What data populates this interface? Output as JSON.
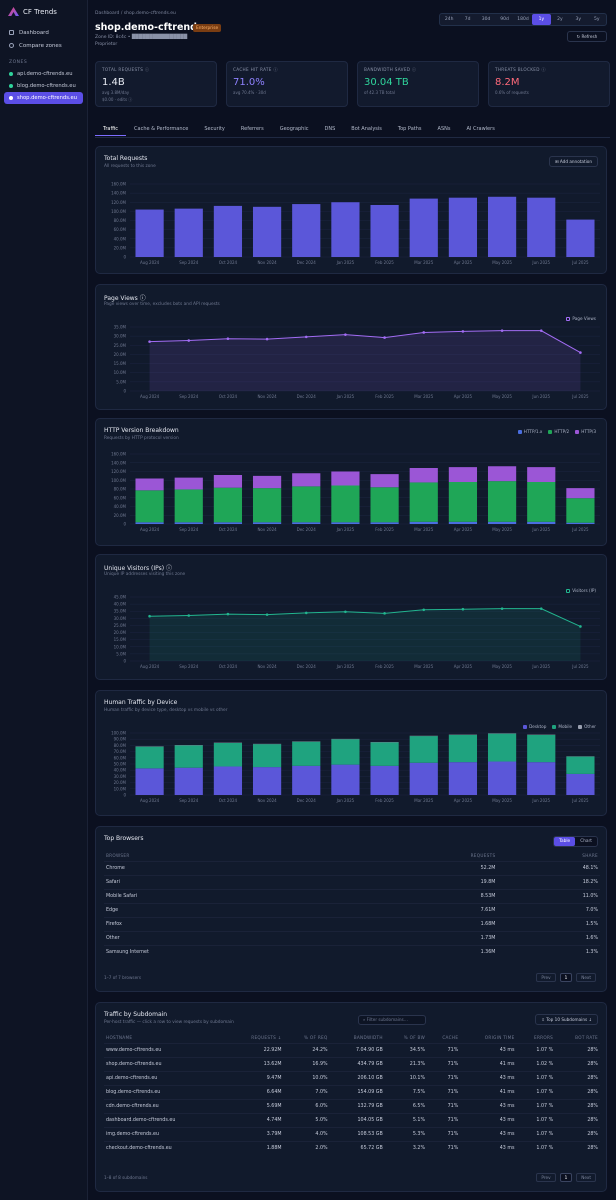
{
  "app": {
    "name": "CF Trends"
  },
  "sidebar": {
    "nav": [
      {
        "label": "Dashboard",
        "icon": "grid-icon"
      },
      {
        "label": "Compare zones",
        "icon": "compare-icon"
      }
    ],
    "section_label": "ZONES",
    "zones": [
      {
        "label": "api.demo-cftrends.eu",
        "active": false
      },
      {
        "label": "blog.demo-cftrends.eu",
        "active": false
      },
      {
        "label": "shop.demo-cftrends.eu",
        "active": true
      }
    ]
  },
  "header": {
    "breadcrumb": "Dashboard  /  shop.demo-cftrends.eu",
    "title": "shop.demo-cftrends.eu",
    "badge": "Enterprise",
    "meta1": "Zone ID: 8c4c • ████████████████",
    "meta2": "Proprietor",
    "ranges": [
      "24h",
      "7d",
      "30d",
      "90d",
      "180d",
      "1y",
      "2y",
      "3y",
      "5y"
    ],
    "selected_range": "1y",
    "refresh_label": "↻ Refresh"
  },
  "kpis": [
    {
      "label": "TOTAL REQUESTS ⓘ",
      "value": "1.4B",
      "sub": "avg 3.8M/day",
      "sub2": "$0.00 · edits ⓘ",
      "color": "#e6e9f2"
    },
    {
      "label": "CACHE HIT RATE ⓘ",
      "value": "71.0%",
      "sub": "avg 70.4% · 30d",
      "sub2": "",
      "color": "#8f82ff"
    },
    {
      "label": "BANDWIDTH SAVED ⓘ",
      "value": "30.04 TB",
      "sub": "of 42.3 TB total",
      "sub2": "",
      "color": "#2fd39b"
    },
    {
      "label": "THREATS BLOCKED ⓘ",
      "value": "8.2M",
      "sub": "0.6% of requests",
      "sub2": "",
      "color": "#ff6a7a"
    }
  ],
  "tabs": [
    "Traffic",
    "Cache & Performance",
    "Security",
    "Referrers",
    "Geographic",
    "DNS",
    "Bot Analysis",
    "Top Paths",
    "ASNs",
    "AI Crawlers"
  ],
  "selected_tab": "Traffic",
  "charts": {
    "total_requests": {
      "title": "Total Requests",
      "subtitle": "All requests to this zone",
      "button": "⊞ Add annotation"
    },
    "page_views": {
      "title": "Page Views ⓘ",
      "subtitle": "Page views over time, excludes bots and API requests",
      "legend": "Page Views"
    },
    "http_versions": {
      "title": "HTTP Version Breakdown",
      "subtitle": "Requests by HTTP protocol version",
      "legend": [
        "HTTP/1.x",
        "HTTP/2",
        "HTTP/3"
      ]
    },
    "unique_visitors": {
      "title": "Unique Visitors (IPs) ⓘ",
      "subtitle": "Unique IP addresses visiting this zone",
      "legend": "Visitors (IP)"
    },
    "human_traffic": {
      "title": "Human Traffic by Device",
      "subtitle": "Human traffic by device type, desktop vs mobile vs other",
      "legend": [
        "Desktop",
        "Mobile",
        "Other"
      ]
    }
  },
  "chart_data": [
    {
      "type": "bar",
      "title": "Total Requests",
      "categories": [
        "Aug 2024",
        "Sep 2024",
        "Oct 2024",
        "Nov 2024",
        "Dec 2024",
        "Jan 2025",
        "Feb 2025",
        "Mar 2025",
        "Apr 2025",
        "May 2025",
        "Jun 2025",
        "Jul 2025"
      ],
      "values": [
        104,
        106,
        112,
        110,
        116,
        120,
        114,
        128,
        130,
        132,
        130,
        82
      ],
      "ylim": [
        0,
        160
      ],
      "yticks": [
        "0",
        "20.0M",
        "40.0M",
        "60.0M",
        "80.0M",
        "100.0M",
        "120.0M",
        "140.0M",
        "160.0M"
      ],
      "color": "#5b57d9"
    },
    {
      "type": "area",
      "title": "Page Views",
      "categories": [
        "Aug 2024",
        "Sep 2024",
        "Oct 2024",
        "Nov 2024",
        "Dec 2024",
        "Jan 2025",
        "Feb 2025",
        "Mar 2025",
        "Apr 2025",
        "May 2025",
        "Jun 2025",
        "Jul 2025"
      ],
      "values": [
        27,
        27.6,
        28.6,
        28.4,
        29.6,
        30.8,
        29.2,
        32,
        32.6,
        33,
        33,
        21
      ],
      "ylim": [
        0,
        35
      ],
      "yticks": [
        "0",
        "5.0M",
        "10.0M",
        "15.0M",
        "20.0M",
        "25.0M",
        "30.0M",
        "35.0M"
      ],
      "color": "#a26cf4"
    },
    {
      "type": "bar",
      "title": "HTTP Version Breakdown",
      "categories": [
        "Aug 2024",
        "Sep 2024",
        "Oct 2024",
        "Nov 2024",
        "Dec 2024",
        "Jan 2025",
        "Feb 2025",
        "Mar 2025",
        "Apr 2025",
        "May 2025",
        "Jun 2025",
        "Jul 2025"
      ],
      "series": [
        {
          "name": "HTTP/1.x",
          "values": [
            4,
            4,
            4,
            4,
            4,
            4,
            4,
            5,
            5,
            5,
            5,
            3
          ],
          "color": "#4a6ee0"
        },
        {
          "name": "HTTP/2",
          "values": [
            73,
            75,
            79,
            78,
            82,
            84,
            80,
            90,
            91,
            93,
            91,
            56
          ],
          "color": "#1fa657"
        },
        {
          "name": "HTTP/3",
          "values": [
            27,
            27,
            29,
            28,
            30,
            32,
            30,
            33,
            34,
            34,
            34,
            23
          ],
          "color": "#9b56d6"
        }
      ],
      "ylim": [
        0,
        160
      ],
      "yticks": [
        "0",
        "20.0M",
        "40.0M",
        "60.0M",
        "80.0M",
        "100.0M",
        "120.0M",
        "140.0M",
        "160.0M"
      ]
    },
    {
      "type": "area",
      "title": "Unique Visitors (IPs)",
      "categories": [
        "Aug 2024",
        "Sep 2024",
        "Oct 2024",
        "Nov 2024",
        "Dec 2024",
        "Jan 2025",
        "Feb 2025",
        "Mar 2025",
        "Apr 2025",
        "May 2025",
        "Jun 2025",
        "Jul 2025"
      ],
      "values": [
        31.5,
        32,
        33,
        32.6,
        33.8,
        34.6,
        33.5,
        36,
        36.4,
        36.8,
        36.8,
        24.3
      ],
      "ylim": [
        0,
        45
      ],
      "yticks": [
        "0",
        "5.0M",
        "10.0M",
        "15.0M",
        "20.0M",
        "25.0M",
        "30.0M",
        "35.0M",
        "40.0M",
        "45.0M"
      ],
      "color": "#22b58f"
    },
    {
      "type": "bar",
      "title": "Human Traffic by Device",
      "categories": [
        "Aug 2024",
        "Sep 2024",
        "Oct 2024",
        "Nov 2024",
        "Dec 2024",
        "Jan 2025",
        "Feb 2025",
        "Mar 2025",
        "Apr 2025",
        "May 2025",
        "Jun 2025",
        "Jul 2025"
      ],
      "series": [
        {
          "name": "Desktop",
          "values": [
            43,
            44,
            46,
            45,
            47,
            49,
            47,
            52,
            53,
            54,
            53,
            34
          ],
          "color": "#5b57d9"
        },
        {
          "name": "Mobile",
          "values": [
            35,
            36,
            38,
            37,
            39,
            41,
            38,
            43,
            44,
            45,
            44,
            28
          ],
          "color": "#1fa37f"
        },
        {
          "name": "Other",
          "values": [
            0.5,
            0.5,
            0.5,
            0.5,
            0.5,
            0.5,
            0.5,
            0.5,
            0.5,
            0.5,
            0.5,
            0.4
          ],
          "color": "#9aa0b0"
        }
      ],
      "ylim": [
        0,
        100
      ],
      "yticks": [
        "0",
        "10.0M",
        "20.0M",
        "30.0M",
        "40.0M",
        "50.0M",
        "60.0M",
        "70.0M",
        "80.0M",
        "90.0M",
        "100.0M"
      ]
    }
  ],
  "browsers": {
    "title": "Top Browsers",
    "toggle": [
      "Table",
      "Chart"
    ],
    "columns": [
      "BROWSER",
      "REQUESTS",
      "SHARE"
    ],
    "rows": [
      [
        "Chrome",
        "52.2M",
        "48.1%"
      ],
      [
        "Safari",
        "19.8M",
        "18.2%"
      ],
      [
        "Mobile Safari",
        "8.53M",
        "11.0%"
      ],
      [
        "Edge",
        "7.61M",
        "7.0%"
      ],
      [
        "Firefox",
        "1.68M",
        "1.5%"
      ],
      [
        "Other",
        "1.73M",
        "1.6%"
      ],
      [
        "Samsung Internet",
        "1.36M",
        "1.3%"
      ]
    ],
    "footer": "1–7 of 7 browsers",
    "pager": [
      "Prev",
      "1",
      "Next"
    ]
  },
  "subdomains": {
    "title": "Traffic by Subdomain",
    "subtitle": "Per-host traffic — click a row to view requests by subdomain",
    "search_placeholder": "⌕ Filter subdomains…",
    "button": "⇩ Top 10 Subdomains ↓",
    "columns": [
      "HOSTNAME",
      "REQUESTS ↓",
      "% OF REQ",
      "BANDWIDTH",
      "% OF BW",
      "CACHE",
      "ORIGIN TIME",
      "ERRORS",
      "BOT RATE"
    ],
    "rows": [
      [
        "www.demo-cftrends.eu",
        "22.92M",
        "24.2%",
        "7.04.90 GB",
        "34.5%",
        "71%",
        "43 ms",
        "1.07 %",
        "28%"
      ],
      [
        "shop.demo-cftrends.eu",
        "13.62M",
        "16.9%",
        "434.79 GB",
        "21.3%",
        "71%",
        "41 ms",
        "1.02 %",
        "28%"
      ],
      [
        "api.demo-cftrends.eu",
        "9.47M",
        "10.0%",
        "206.10 GB",
        "10.1%",
        "71%",
        "43 ms",
        "1.07 %",
        "28%"
      ],
      [
        "blog.demo-cftrends.eu",
        "6.64M",
        "7.0%",
        "154.09 GB",
        "7.5%",
        "71%",
        "41 ms",
        "1.07 %",
        "28%"
      ],
      [
        "cdn.demo-cftrends.eu",
        "5.69M",
        "6.0%",
        "132.79 GB",
        "6.5%",
        "71%",
        "43 ms",
        "1.07 %",
        "28%"
      ],
      [
        "dashboard.demo-cftrends.eu",
        "4.74M",
        "5.0%",
        "104.05 GB",
        "5.1%",
        "71%",
        "43 ms",
        "1.07 %",
        "28%"
      ],
      [
        "img.demo-cftrends.eu",
        "3.79M",
        "4.0%",
        "108.53 GB",
        "5.3%",
        "71%",
        "43 ms",
        "1.07 %",
        "28%"
      ],
      [
        "checkout.demo-cftrends.eu",
        "1.88M",
        "2.0%",
        "65.72 GB",
        "3.2%",
        "71%",
        "43 ms",
        "1.07 %",
        "28%"
      ]
    ],
    "footer": "1–8 of 8 subdomains",
    "pager": [
      "Prev",
      "1",
      "Next"
    ]
  }
}
